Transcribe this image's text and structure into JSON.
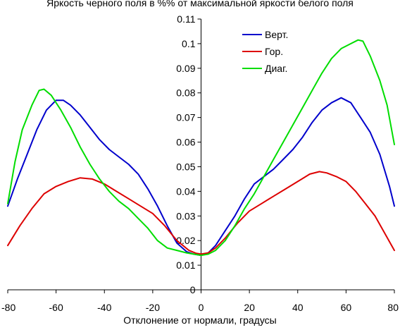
{
  "chart_data": {
    "type": "line",
    "title": "Яркость черного поля в %% от максимальной яркости белого поля",
    "xlabel": "Отклонение от нормали, градусы",
    "ylabel": "",
    "xlim": [
      -80,
      80
    ],
    "ylim": [
      0,
      0.11
    ],
    "x_ticks": [
      "-80",
      "-60",
      "-40",
      "-20",
      "0",
      "20",
      "40",
      "60",
      "80"
    ],
    "y_ticks": [
      "0",
      "0.01",
      "0.02",
      "0.03",
      "0.04",
      "0.05",
      "0.06",
      "0.07",
      "0.08",
      "0.09",
      "0.1",
      "0.11"
    ],
    "grid": false,
    "legend_position": "top-right",
    "series": [
      {
        "name": "Верт.",
        "color": "#0000cc",
        "x": [
          -80,
          -76,
          -72,
          -68,
          -64,
          -60,
          -57,
          -54,
          -50,
          -46,
          -42,
          -38,
          -34,
          -30,
          -26,
          -22,
          -18,
          -14,
          -10,
          -6,
          -3,
          0,
          3,
          6,
          10,
          14,
          18,
          22,
          26,
          30,
          34,
          38,
          42,
          46,
          50,
          54,
          58,
          62,
          66,
          70,
          74,
          78,
          80
        ],
        "values": [
          0.034,
          0.045,
          0.055,
          0.065,
          0.073,
          0.077,
          0.077,
          0.075,
          0.071,
          0.066,
          0.061,
          0.057,
          0.054,
          0.051,
          0.047,
          0.041,
          0.034,
          0.026,
          0.019,
          0.0155,
          0.0145,
          0.014,
          0.015,
          0.018,
          0.024,
          0.03,
          0.037,
          0.043,
          0.046,
          0.049,
          0.053,
          0.057,
          0.062,
          0.068,
          0.073,
          0.076,
          0.078,
          0.076,
          0.07,
          0.064,
          0.055,
          0.042,
          0.034
        ]
      },
      {
        "name": "Гор.",
        "color": "#dd0000",
        "x": [
          -80,
          -75,
          -70,
          -65,
          -60,
          -55,
          -50,
          -45,
          -40,
          -35,
          -30,
          -25,
          -20,
          -15,
          -10,
          -5,
          -2,
          0,
          3,
          6,
          10,
          15,
          20,
          25,
          30,
          35,
          40,
          45,
          49,
          52,
          56,
          60,
          64,
          68,
          72,
          76,
          80
        ],
        "values": [
          0.018,
          0.026,
          0.033,
          0.039,
          0.042,
          0.044,
          0.0455,
          0.045,
          0.043,
          0.04,
          0.037,
          0.034,
          0.031,
          0.026,
          0.02,
          0.016,
          0.0148,
          0.0145,
          0.015,
          0.017,
          0.021,
          0.027,
          0.032,
          0.035,
          0.038,
          0.041,
          0.044,
          0.047,
          0.048,
          0.0475,
          0.046,
          0.044,
          0.04,
          0.035,
          0.03,
          0.023,
          0.016
        ]
      },
      {
        "name": "Диаг.",
        "color": "#00dd00",
        "x": [
          -80,
          -77,
          -74,
          -70,
          -67,
          -65,
          -62,
          -58,
          -54,
          -50,
          -46,
          -42,
          -38,
          -34,
          -30,
          -26,
          -22,
          -18,
          -14,
          -10,
          -6,
          -3,
          0,
          3,
          6,
          10,
          14,
          18,
          22,
          26,
          30,
          34,
          38,
          42,
          46,
          50,
          54,
          58,
          62,
          65,
          67,
          70,
          74,
          77,
          80
        ],
        "values": [
          0.035,
          0.052,
          0.065,
          0.075,
          0.081,
          0.0815,
          0.079,
          0.073,
          0.066,
          0.058,
          0.051,
          0.045,
          0.04,
          0.036,
          0.033,
          0.029,
          0.025,
          0.02,
          0.017,
          0.016,
          0.015,
          0.0145,
          0.014,
          0.0145,
          0.016,
          0.02,
          0.026,
          0.033,
          0.039,
          0.046,
          0.053,
          0.06,
          0.067,
          0.074,
          0.081,
          0.088,
          0.094,
          0.098,
          0.1,
          0.1015,
          0.101,
          0.095,
          0.085,
          0.075,
          0.059
        ]
      }
    ]
  }
}
